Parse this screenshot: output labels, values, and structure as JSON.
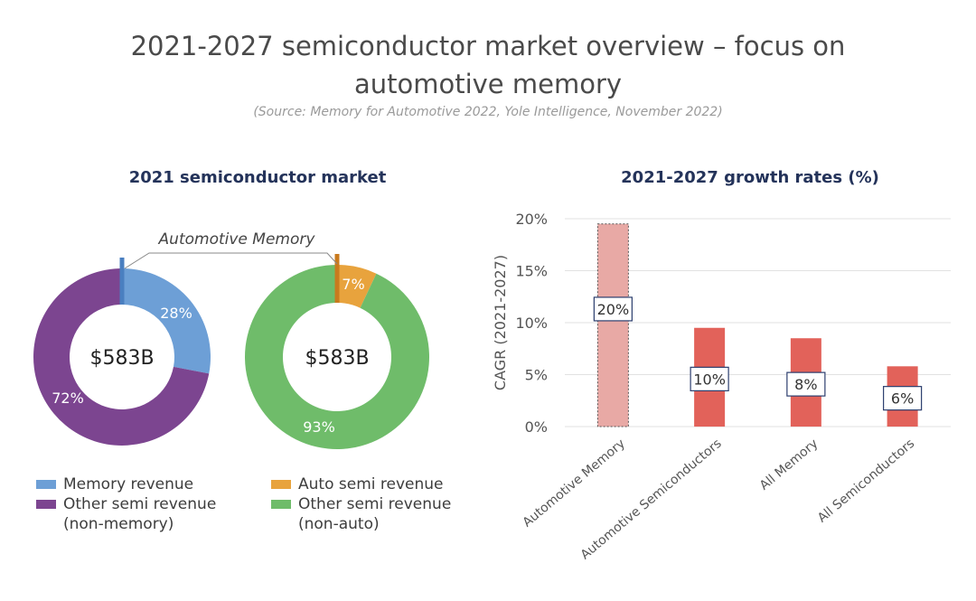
{
  "header": {
    "title_line1": "2021-2027 semiconductor market overview – focus on",
    "title_line2": "automotive memory",
    "subtitle": "(Source: Memory for Automotive 2022, Yole Intelligence, November 2022)"
  },
  "chart_data": [
    {
      "type": "pie",
      "title": "2021 semiconductor market",
      "center_label": "$583B",
      "callout": "Automotive Memory",
      "slices": [
        {
          "name": "Memory revenue",
          "value": 28,
          "label": "28%",
          "color": "#6d9fd6"
        },
        {
          "name": "Other semi revenue (non-memory)",
          "value": 72,
          "label": "72%",
          "color": "#7c4590"
        }
      ],
      "highlight": {
        "name": "Automotive Memory",
        "color": "#4a7fc0"
      }
    },
    {
      "type": "pie",
      "title": "",
      "center_label": "$583B",
      "slices": [
        {
          "name": "Auto semi revenue",
          "value": 7,
          "label": "7%",
          "color": "#e8a33d"
        },
        {
          "name": "Other semi revenue (non-auto)",
          "value": 93,
          "label": "93%",
          "color": "#6fbc6a"
        }
      ],
      "highlight": {
        "name": "Automotive Memory",
        "color": "#c97a1e"
      }
    },
    {
      "type": "bar",
      "title": "2021-2027 growth rates (%)",
      "ylabel": "CAGR (2021-2027)",
      "xlabel": "",
      "categories": [
        "Automotive Memory",
        "Automotive Semiconductors",
        "All Memory",
        "All Semiconductors"
      ],
      "values": [
        19.5,
        9.5,
        8.5,
        5.8
      ],
      "data_labels": [
        "20%",
        "10%",
        "8%",
        "6%"
      ],
      "ylim": [
        0,
        20
      ],
      "yticks": [
        "0%",
        "5%",
        "10%",
        "15%",
        "20%"
      ],
      "grid": true,
      "colors": [
        "#e8a9a5",
        "#e2625a",
        "#e2625a",
        "#e2625a"
      ]
    }
  ],
  "legend": {
    "memory_revenue": "Memory revenue",
    "other_semi_1": "Other semi revenue",
    "other_semi_1_sub": "(non-memory)",
    "auto_semi": "Auto semi revenue",
    "other_semi_2": "Other semi revenue",
    "other_semi_2_sub": "(non-auto)"
  },
  "colors": {
    "memory": "#6d9fd6",
    "non_memory": "#7c4590",
    "auto": "#e8a33d",
    "non_auto": "#6fbc6a",
    "bar_main": "#e2625a",
    "bar_highlight": "#e8a9a5"
  }
}
